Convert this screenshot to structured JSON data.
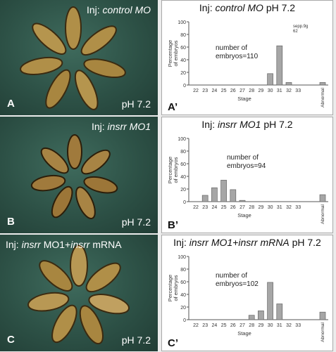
{
  "panels": [
    {
      "photo_letter": "A",
      "photo_ph": "pH 7.2",
      "injection_prefix": "Inj: ",
      "injection_italic": "control MO",
      "injection_suffix": "",
      "chart_letter": "A’",
      "chart_title_prefix": "Inj: ",
      "chart_title_italic": "control MO",
      "chart_title_suffix": " pH 7.2",
      "annotation_line1": "number of",
      "annotation_line2": "embryos=110",
      "scale_note_line1": "sepp.9g",
      "scale_note_line2": "62"
    },
    {
      "photo_letter": "B",
      "photo_ph": "pH 7.2",
      "injection_prefix": "Inj: ",
      "injection_italic": "insrr MO1",
      "injection_suffix": "",
      "chart_letter": "B’",
      "chart_title_prefix": "Inj: ",
      "chart_title_italic": "insrr MO1",
      "chart_title_suffix": " pH 7.2",
      "annotation_line1": "number of",
      "annotation_line2": "embryos=94"
    },
    {
      "photo_letter": "C",
      "photo_ph": "pH 7.2",
      "injection_prefix": "Inj: ",
      "injection_italic": "insrr",
      "injection_suffix": " MO1+",
      "injection_italic2": "insrr",
      "injection_suffix2": " mRNA",
      "chart_letter": "C’",
      "chart_title_prefix": "Inj: ",
      "chart_title_italic": "insrr MO1+insrr mRNA",
      "chart_title_suffix": " pH 7.2",
      "annotation_line1": "number of",
      "annotation_line2": "embryos=102"
    }
  ],
  "chart_data": [
    {
      "type": "bar",
      "ylabel": "Percentage of embryos",
      "xlabel": "Stage",
      "categories": [
        "22",
        "23",
        "24",
        "25",
        "26",
        "27",
        "28",
        "29",
        "30",
        "31",
        "32",
        "33",
        "Abnormal"
      ],
      "values": [
        0,
        0,
        0,
        0,
        0,
        0,
        0,
        0,
        18,
        62,
        4,
        0,
        4
      ],
      "y_ticks": [
        "0",
        "20",
        "40",
        "60",
        "80",
        "100"
      ],
      "ylim": [
        0,
        100
      ]
    },
    {
      "type": "bar",
      "ylabel": "Percentage of embryos",
      "xlabel": "Stage",
      "categories": [
        "22",
        "23",
        "24",
        "25",
        "26",
        "27",
        "28",
        "29",
        "30",
        "31",
        "32",
        "33",
        "Abnormal"
      ],
      "values": [
        0,
        10,
        22,
        34,
        19,
        2,
        0,
        0,
        0,
        0,
        0,
        0,
        11
      ],
      "y_ticks": [
        "0",
        "20",
        "40",
        "60",
        "80",
        "100"
      ],
      "ylim": [
        0,
        100
      ]
    },
    {
      "type": "bar",
      "ylabel": "Percentage of embryos",
      "xlabel": "Stage",
      "categories": [
        "22",
        "23",
        "24",
        "25",
        "26",
        "27",
        "28",
        "29",
        "30",
        "31",
        "32",
        "33",
        "Abnormal"
      ],
      "values": [
        0,
        0,
        0,
        0,
        0,
        0,
        7,
        14,
        59,
        25,
        0,
        0,
        12
      ],
      "y_ticks": [
        "0",
        "20",
        "40",
        "60",
        "80",
        "100"
      ],
      "ylim": [
        0,
        100
      ]
    }
  ]
}
